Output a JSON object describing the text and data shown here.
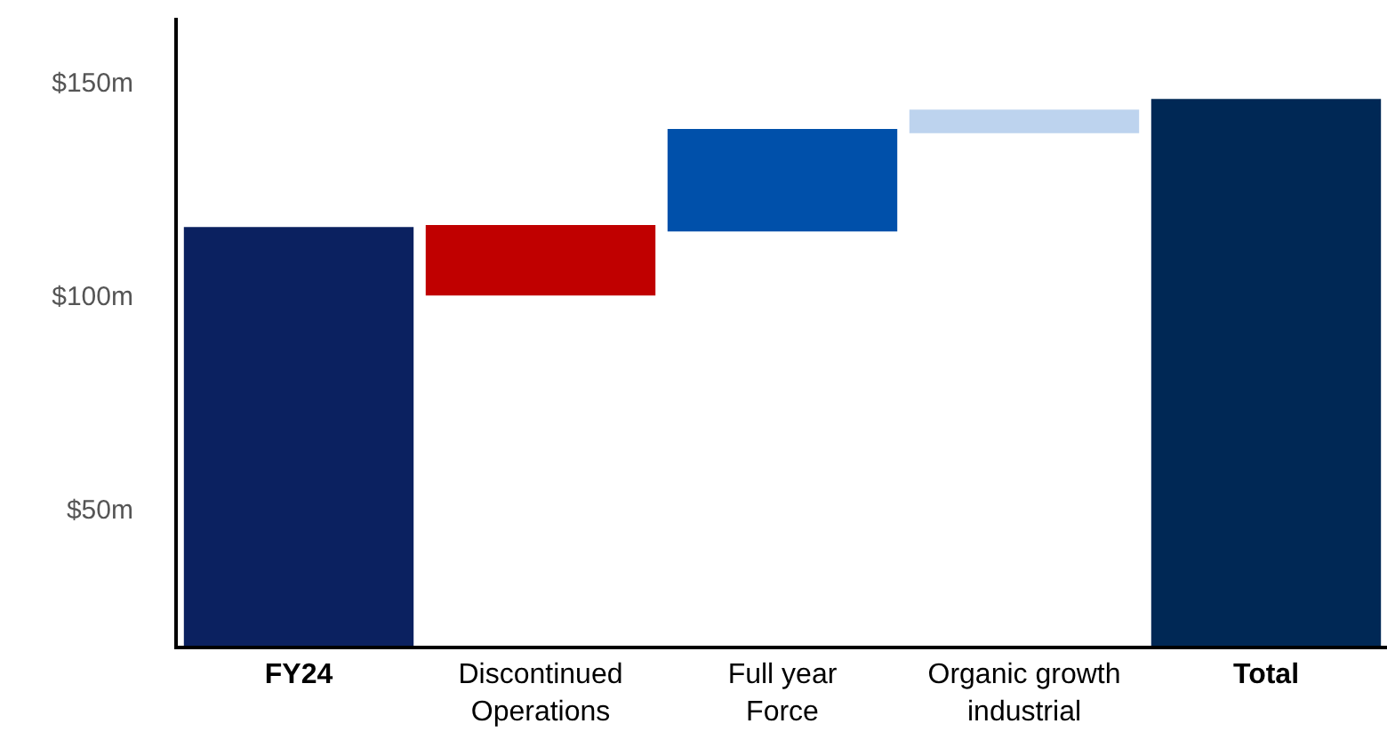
{
  "chart_data": {
    "type": "bar",
    "categories": [
      "FY24",
      "Discontinued\nOperations",
      "Full year\nForce",
      "Organic growth\nindustrial",
      "Total"
    ],
    "values": [
      116,
      -16.5,
      24,
      5.5,
      146
    ],
    "base": [
      null,
      116.5,
      115,
      138,
      null
    ],
    "colors": [
      "#0b2160",
      "#c00000",
      "#0050aa",
      "#bdd3ee",
      "#002855"
    ],
    "ylim": [
      18,
      165
    ],
    "yticks": [
      {
        "value": 50,
        "label": "$50m"
      },
      {
        "value": 100,
        "label": "$100m"
      },
      {
        "value": 150,
        "label": "$150m"
      }
    ],
    "legend": false
  }
}
